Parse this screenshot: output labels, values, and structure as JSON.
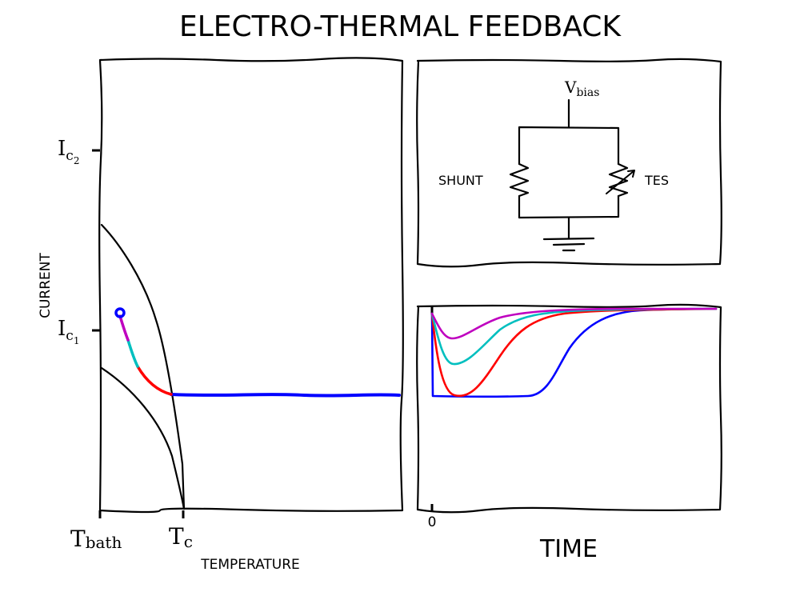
{
  "title": "ELECTRO-THERMAL FEEDBACK",
  "left_panel": {
    "ylabel": "CURRENT",
    "xlabel": "TEMPERATURE",
    "y_ticks": [
      {
        "base": "I",
        "sub": "c",
        "subsub": "2"
      },
      {
        "base": "I",
        "sub": "c",
        "subsub": "1"
      }
    ],
    "x_ticks": [
      {
        "base": "T",
        "sub": "bath"
      },
      {
        "base": "T",
        "sub": "c"
      }
    ]
  },
  "circuit": {
    "vbias": {
      "base": "V",
      "sub": "bias"
    },
    "shunt_label": "SHUNT",
    "tes_label": "TES"
  },
  "time_panel": {
    "xlabel": "TIME",
    "x_tick": "0"
  },
  "colors": {
    "blue": "#0000ff",
    "red": "#ff0000",
    "cyan": "#00bfbf",
    "magenta": "#bf00bf",
    "black": "#000000"
  }
}
